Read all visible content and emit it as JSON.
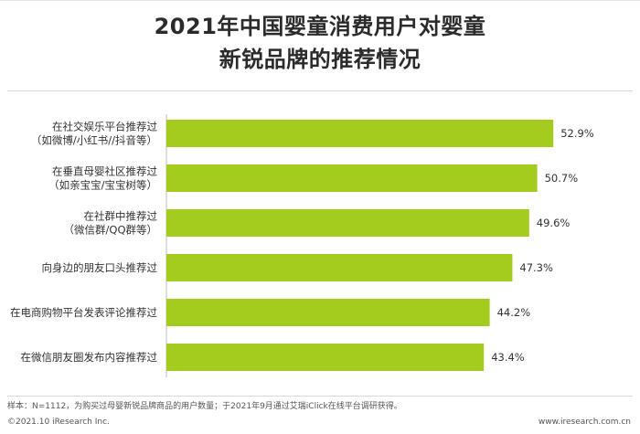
{
  "chart_data": {
    "type": "bar",
    "orientation": "horizontal",
    "title_lines": [
      "2021年中国婴童消费用户对婴童",
      "新锐品牌的推荐情况"
    ],
    "categories": [
      [
        "在社交娱乐平台推荐过",
        "（如微博/小红书//抖音等）"
      ],
      [
        "在垂直母婴社区推荐过",
        "（如亲宝宝/宝宝树等）"
      ],
      [
        "在社群中推荐过",
        "（微信群/QQ群等）"
      ],
      [
        "向身边的朋友口头推荐过"
      ],
      [
        "在电商购物平台发表评论推荐过"
      ],
      [
        "在微信朋友圈发布内容推荐过"
      ]
    ],
    "values": [
      52.9,
      50.7,
      49.6,
      47.3,
      44.2,
      43.4
    ],
    "value_labels": [
      "52.9%",
      "50.7%",
      "49.6%",
      "47.3%",
      "44.2%",
      "43.4%"
    ],
    "bar_color": "#a3cc1e",
    "grid": false
  },
  "note": "样本：N=1112，为购买过母婴新锐品牌商品的用户数量；于2021年9月通过艾瑞iClick在线平台调研获得。",
  "footer": {
    "copyright": "©2021.10 iResearch Inc.",
    "website": "www.iresearch.com.cn"
  }
}
